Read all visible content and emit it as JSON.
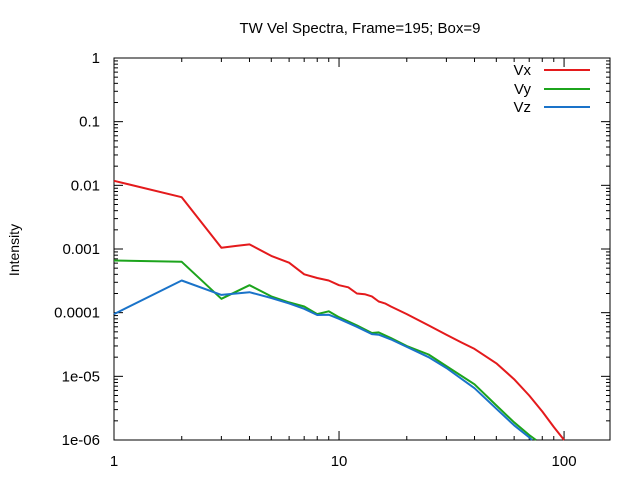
{
  "chart_data": {
    "type": "line",
    "title": "TW Vel Spectra, Frame=195; Box=9",
    "xlabel": "",
    "ylabel": "Intensity",
    "x_scale": "log",
    "y_scale": "log",
    "xlim": [
      1,
      160
    ],
    "ylim": [
      1e-06,
      1
    ],
    "x_ticks": [
      {
        "value": 1,
        "label": "1"
      },
      {
        "value": 10,
        "label": "10"
      },
      {
        "value": 100,
        "label": "100"
      }
    ],
    "y_ticks": [
      {
        "value": 1,
        "label": "1"
      },
      {
        "value": 0.1,
        "label": "0.1"
      },
      {
        "value": 0.01,
        "label": "0.01"
      },
      {
        "value": 0.001,
        "label": "0.001"
      },
      {
        "value": 0.0001,
        "label": "0.0001"
      },
      {
        "value": 1e-05,
        "label": "1e-05"
      },
      {
        "value": 1e-06,
        "label": "1e-06"
      }
    ],
    "grid": false,
    "legend_position": "top-right",
    "series": [
      {
        "name": "Vx",
        "color": "#e41a1c",
        "points": [
          [
            1,
            0.0118
          ],
          [
            2,
            0.0065
          ],
          [
            3,
            0.00105
          ],
          [
            3.5,
            0.00112
          ],
          [
            4,
            0.00118
          ],
          [
            5,
            0.00078
          ],
          [
            6,
            0.00061
          ],
          [
            7,
            0.0004
          ],
          [
            8,
            0.00035
          ],
          [
            9,
            0.00032
          ],
          [
            10,
            0.00027
          ],
          [
            11,
            0.00025
          ],
          [
            12,
            0.0002
          ],
          [
            13,
            0.000195
          ],
          [
            14,
            0.00018
          ],
          [
            15,
            0.00015
          ],
          [
            16,
            0.00014
          ],
          [
            17,
            0.000125
          ],
          [
            20,
            9.5e-05
          ],
          [
            25,
            6.3e-05
          ],
          [
            30,
            4.5e-05
          ],
          [
            35,
            3.4e-05
          ],
          [
            40,
            2.7e-05
          ],
          [
            50,
            1.6e-05
          ],
          [
            60,
            9e-06
          ],
          [
            70,
            5e-06
          ],
          [
            80,
            2.8e-06
          ],
          [
            90,
            1.6e-06
          ],
          [
            100,
            1e-06
          ]
        ]
      },
      {
        "name": "Vy",
        "color": "#1ca41c",
        "points": [
          [
            1,
            0.00066
          ],
          [
            2,
            0.00063
          ],
          [
            3,
            0.000165
          ],
          [
            4,
            0.00027
          ],
          [
            5,
            0.00018
          ],
          [
            6,
            0.000145
          ],
          [
            7,
            0.000125
          ],
          [
            8,
            9.5e-05
          ],
          [
            9,
            0.000105
          ],
          [
            10,
            8.5e-05
          ],
          [
            12,
            6.3e-05
          ],
          [
            14,
            4.8e-05
          ],
          [
            15,
            4.9e-05
          ],
          [
            17,
            4e-05
          ],
          [
            20,
            3e-05
          ],
          [
            25,
            2.2e-05
          ],
          [
            30,
            1.45e-05
          ],
          [
            40,
            7.5e-06
          ],
          [
            50,
            3.5e-06
          ],
          [
            60,
            1.9e-06
          ],
          [
            70,
            1.2e-06
          ],
          [
            75,
            1e-06
          ]
        ]
      },
      {
        "name": "Vz",
        "color": "#1a73c9",
        "points": [
          [
            1,
            9.5e-05
          ],
          [
            2,
            0.00032
          ],
          [
            3,
            0.00019
          ],
          [
            4,
            0.00021
          ],
          [
            5,
            0.00017
          ],
          [
            6,
            0.00014
          ],
          [
            7,
            0.000115
          ],
          [
            8,
            9.2e-05
          ],
          [
            9,
            9.3e-05
          ],
          [
            10,
            8e-05
          ],
          [
            12,
            6e-05
          ],
          [
            14,
            4.6e-05
          ],
          [
            15,
            4.5e-05
          ],
          [
            17,
            3.8e-05
          ],
          [
            20,
            2.9e-05
          ],
          [
            25,
            2e-05
          ],
          [
            30,
            1.35e-05
          ],
          [
            40,
            6.5e-06
          ],
          [
            50,
            3.1e-06
          ],
          [
            60,
            1.7e-06
          ],
          [
            70,
            1.1e-06
          ],
          [
            72,
            1e-06
          ]
        ]
      }
    ]
  }
}
